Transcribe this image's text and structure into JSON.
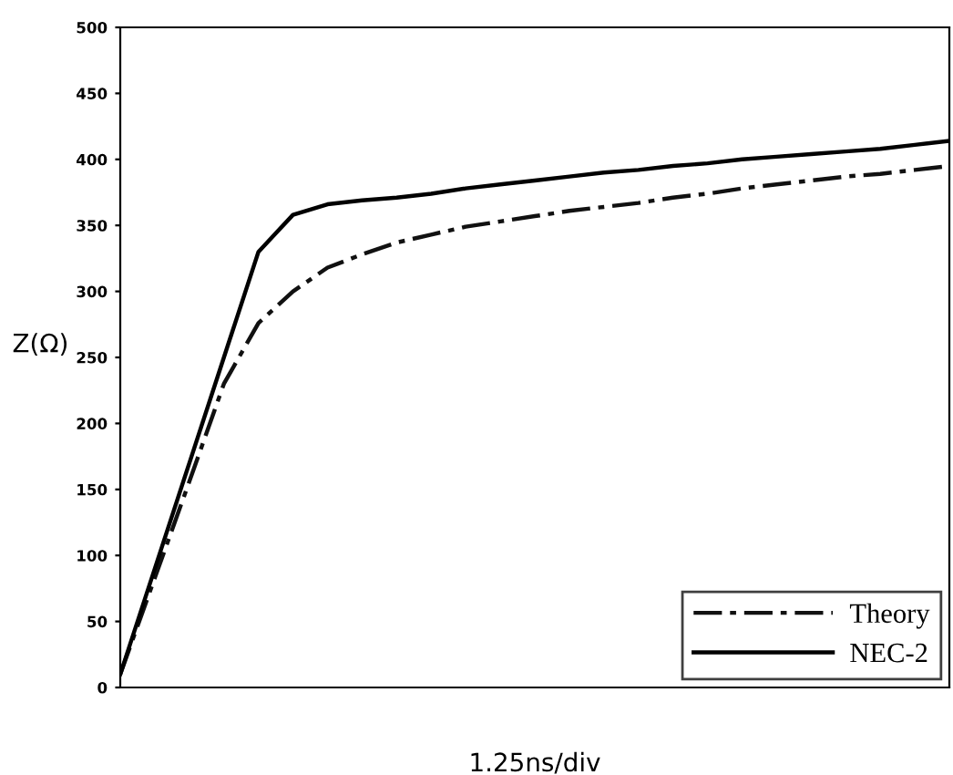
{
  "chart_data": {
    "type": "line",
    "xlabel": "1.25ns/div",
    "ylabel": "Z(Ω)",
    "categories": [
      null,
      null,
      null,
      null,
      null,
      null,
      null,
      null,
      null,
      null,
      null,
      null,
      null,
      null,
      null,
      null,
      null,
      null,
      null,
      null,
      null,
      null,
      null,
      null,
      null
    ],
    "series": [
      {
        "name": "Theory",
        "color": "#111111",
        "line_style": "dashed",
        "values": [
          10,
          83,
          156,
          230,
          276,
          300,
          318,
          328,
          337,
          343,
          349,
          353,
          357,
          361,
          364,
          367,
          371,
          374,
          378,
          381,
          384,
          387,
          389,
          392,
          395
        ]
      },
      {
        "name": "NEC-2",
        "color": "#000000",
        "line_style": "solid",
        "values": [
          10,
          90,
          170,
          250,
          330,
          358,
          366,
          369,
          371,
          374,
          378,
          381,
          384,
          387,
          390,
          392,
          395,
          397,
          400,
          402,
          404,
          406,
          408,
          411,
          414
        ]
      }
    ],
    "ylim": [
      0,
      500
    ],
    "yticks": [
      0,
      50,
      100,
      150,
      200,
      250,
      300,
      350,
      400,
      450,
      500
    ],
    "grid": false,
    "legend": "lower right"
  }
}
